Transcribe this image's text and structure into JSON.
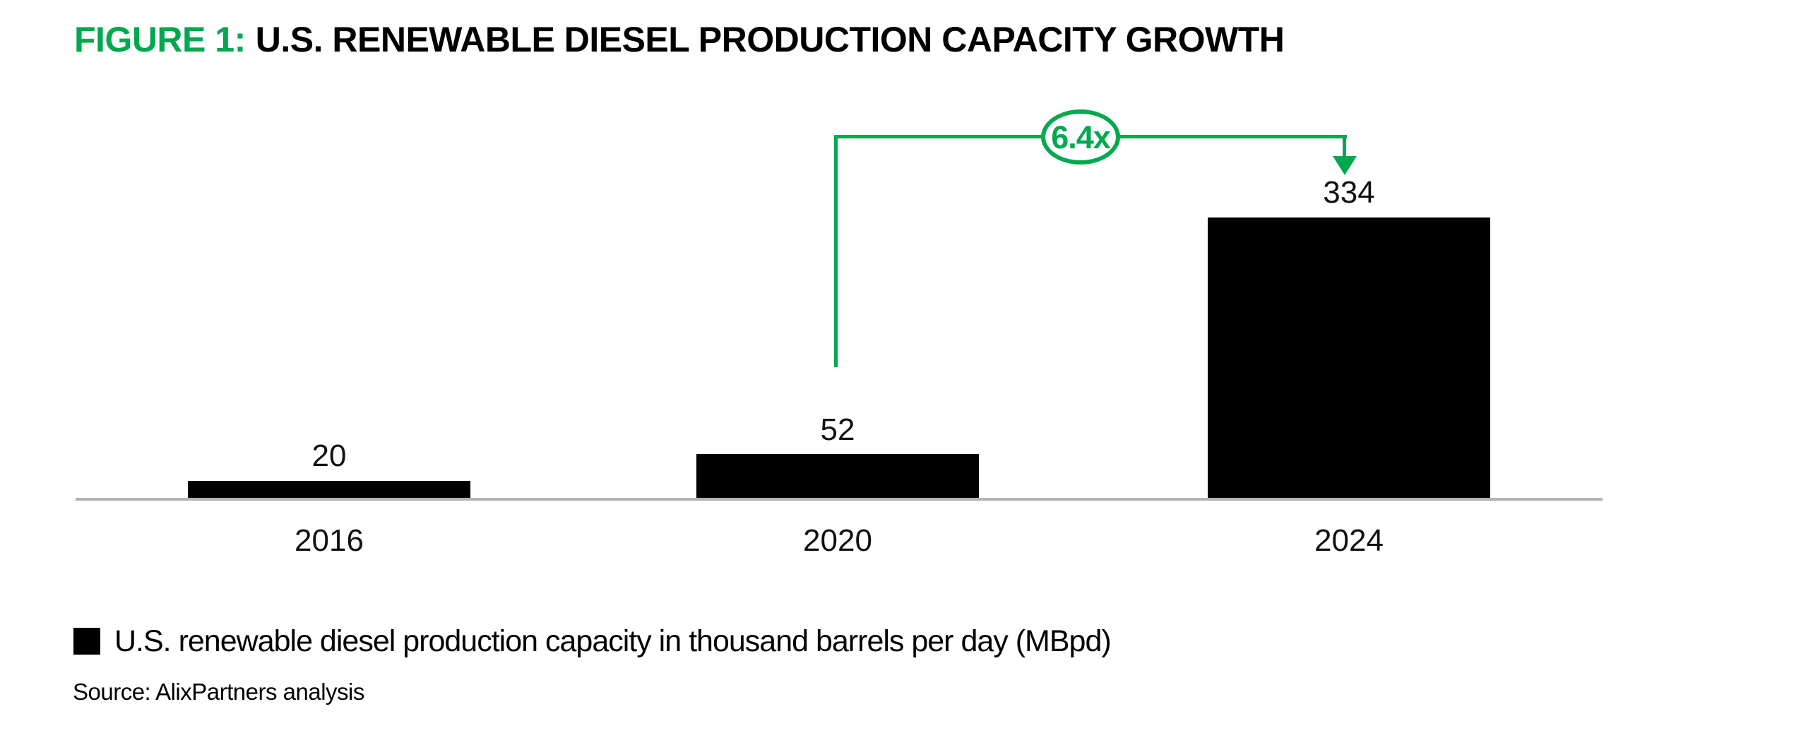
{
  "figure": {
    "label": "FIGURE 1:",
    "title": "U.S. RENEWABLE DIESEL PRODUCTION CAPACITY GROWTH"
  },
  "chart_data": {
    "type": "bar",
    "title": "FIGURE 1: U.S. RENEWABLE DIESEL PRODUCTION CAPACITY GROWTH",
    "categories": [
      "2016",
      "2020",
      "2024"
    ],
    "values": [
      20,
      52,
      334
    ],
    "series": [
      {
        "name": "U.S. renewable diesel production capacity in thousand barrels per day (MBpd)",
        "values": [
          20,
          52,
          334
        ]
      }
    ],
    "xlabel": "",
    "ylabel": "",
    "ylim": [
      0,
      360
    ],
    "grid": false,
    "legend_position": "bottom-left",
    "bar_color": "#000000",
    "axis_color": "#B3B3B3",
    "annotation": {
      "text": "6.4x",
      "from_category": "2020",
      "to_category": "2024",
      "shape": "circled label on elbow connector with down arrow",
      "color": "#00A84E"
    }
  },
  "legend": {
    "swatch_color": "#000000",
    "label": "U.S. renewable diesel production capacity in thousand barrels per day (MBpd)"
  },
  "source": {
    "text": "Source: AlixPartners analysis"
  },
  "colors": {
    "accent_green": "#00A84E",
    "bar_black": "#000000",
    "axis_gray": "#B3B3B3",
    "background": "#FFFFFF"
  },
  "icons": {
    "down-arrow-icon": "▼"
  }
}
